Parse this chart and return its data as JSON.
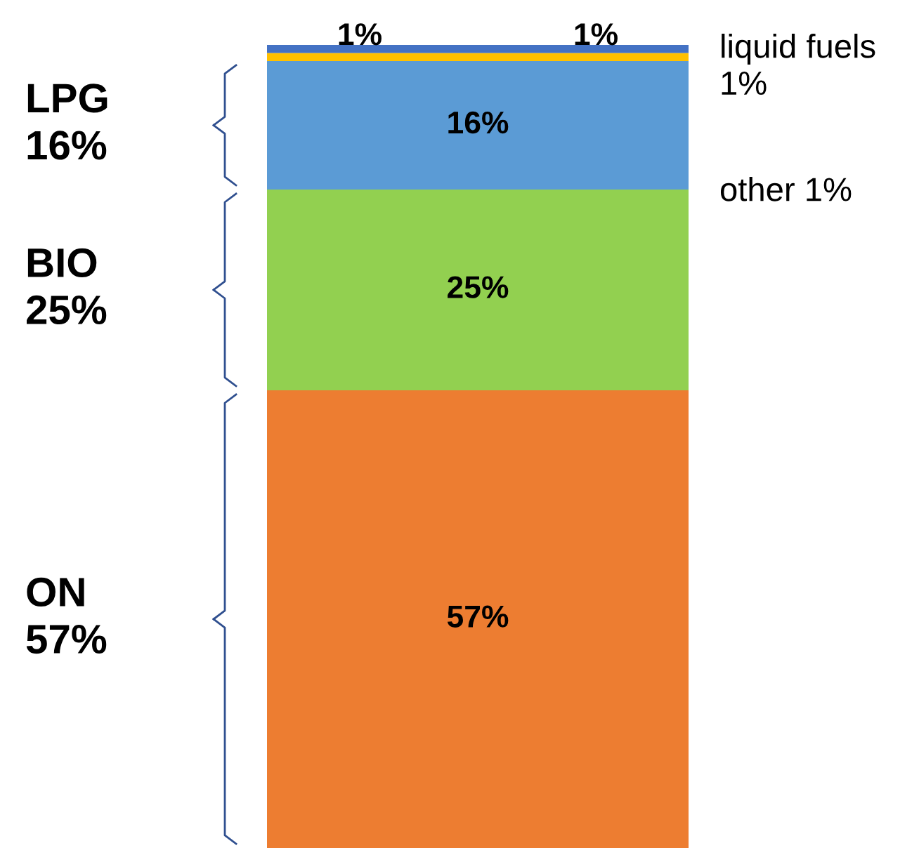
{
  "chart_data": {
    "type": "bar",
    "stacked": true,
    "categories": [
      null
    ],
    "series": [
      {
        "color": "#ed7d31",
        "values": [
          57
        ],
        "value_labels": [
          "57%"
        ]
      },
      {
        "color": "#92d050",
        "values": [
          25
        ],
        "value_labels": [
          "25%"
        ]
      },
      {
        "color": "#5b9bd5",
        "values": [
          16
        ],
        "value_labels": [
          "16%"
        ]
      },
      {
        "color": "#ffc000",
        "values": [
          1
        ],
        "value_labels": [
          "1%"
        ]
      },
      {
        "color": "#4472c4",
        "values": [
          1
        ],
        "value_labels": [
          "1%"
        ]
      }
    ],
    "annotations": [
      "ON 57%",
      "BIO 25%",
      "LPG 16%",
      "liquid fuels 1%",
      "other 1%"
    ]
  }
}
